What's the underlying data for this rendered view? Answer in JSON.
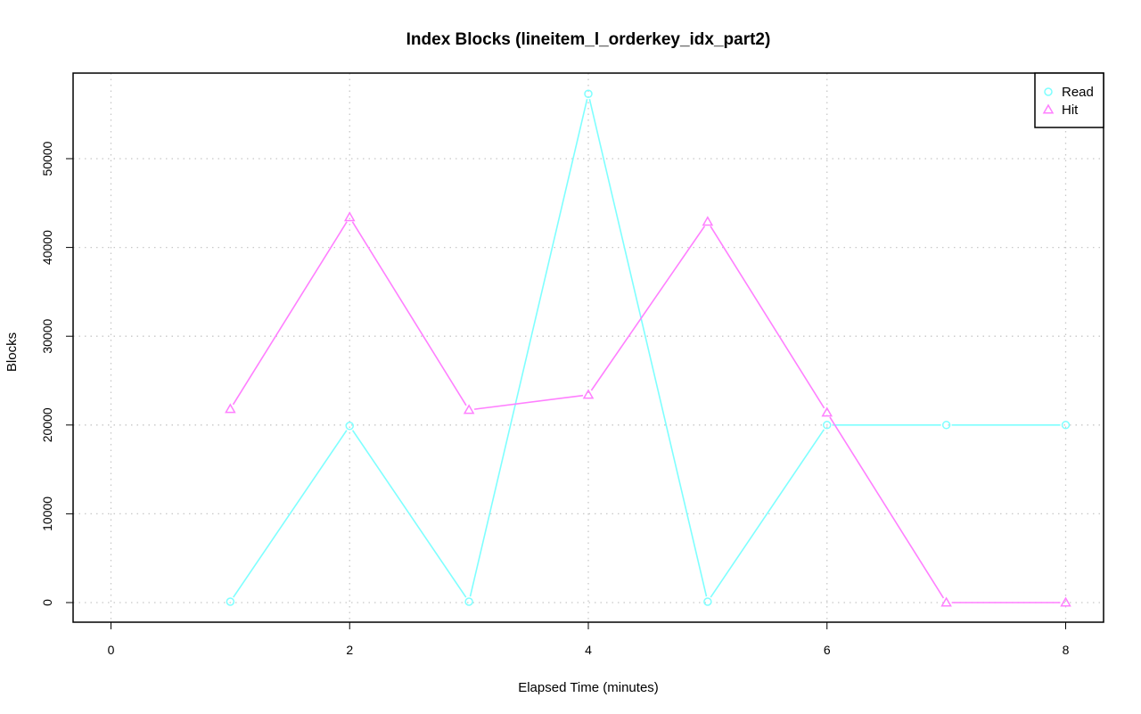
{
  "chart_data": {
    "type": "line",
    "title": "Index Blocks (lineitem_l_orderkey_idx_part2)",
    "xlabel": "Elapsed Time (minutes)",
    "ylabel": "Blocks",
    "xlim": [
      0,
      8
    ],
    "ylim": [
      0,
      57500
    ],
    "x_ticks": [
      0,
      2,
      4,
      6,
      8
    ],
    "y_ticks": [
      0,
      10000,
      20000,
      30000,
      40000,
      50000
    ],
    "grid": true,
    "legend_position": "top-right",
    "series": [
      {
        "name": "Read",
        "color": "#7fffff",
        "marker": "circle",
        "x": [
          1,
          2,
          3,
          4,
          5,
          6,
          7,
          8
        ],
        "y": [
          100,
          19900,
          100,
          57300,
          100,
          20000,
          20000,
          20000
        ]
      },
      {
        "name": "Hit",
        "color": "#ff7fff",
        "marker": "triangle",
        "x": [
          1,
          2,
          3,
          4,
          5,
          6,
          7,
          8
        ],
        "y": [
          21800,
          43400,
          21700,
          23400,
          42900,
          21400,
          0,
          0
        ]
      }
    ]
  }
}
